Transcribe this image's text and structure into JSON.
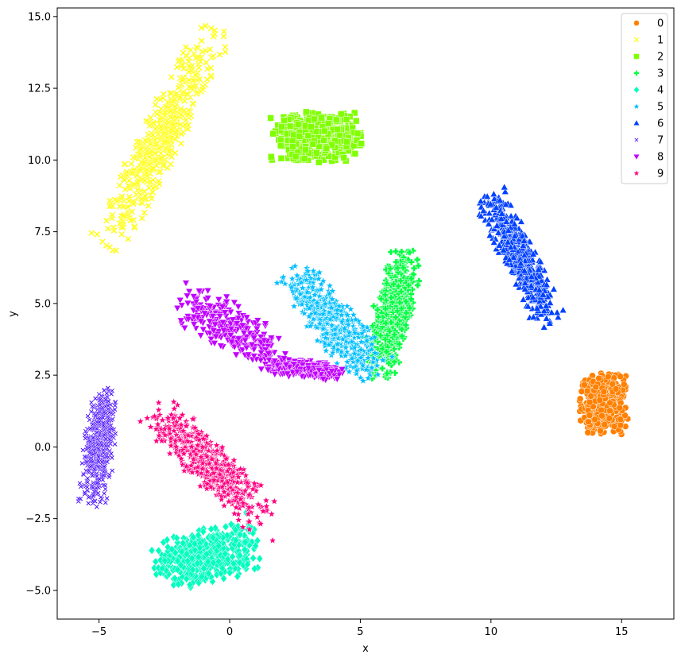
{
  "chart_data": {
    "type": "scatter",
    "title": "",
    "xlabel": "x",
    "ylabel": "y",
    "xlim": [
      -6.6,
      17.0
    ],
    "ylim": [
      -6.0,
      15.3
    ],
    "xticks": [
      -5,
      0,
      5,
      10,
      15
    ],
    "yticks": [
      -5.0,
      -2.5,
      0.0,
      2.5,
      5.0,
      7.5,
      10.0,
      12.5,
      15.0
    ],
    "xtick_labels": [
      "−5",
      "0",
      "5",
      "10",
      "15"
    ],
    "ytick_labels": [
      "−5.0",
      "−2.5",
      "0.0",
      "2.5",
      "5.0",
      "7.5",
      "10.0",
      "12.5",
      "15.0"
    ],
    "grid": false,
    "legend_position": "top-right",
    "series": [
      {
        "name": "0",
        "color": "#ff8000",
        "marker": "circle",
        "clusters": [
          {
            "center": [
              14.3,
              1.5
            ],
            "spread": [
              0.85,
              1.0
            ],
            "angle": 0
          }
        ]
      },
      {
        "name": "1",
        "color": "#ffff00",
        "marker": "x",
        "clusters": [
          {
            "center": [
              -2.6,
              10.8
            ],
            "spread": [
              4.0,
              0.75
            ],
            "angle": 62
          }
        ]
      },
      {
        "name": "2",
        "color": "#80ff00",
        "marker": "square",
        "clusters": [
          {
            "center": [
              3.3,
              10.8
            ],
            "spread": [
              1.6,
              0.8
            ],
            "angle": 0
          }
        ]
      },
      {
        "name": "3",
        "color": "#00ff40",
        "marker": "plus",
        "clusters": [
          {
            "center": [
              6.2,
              4.6
            ],
            "spread": [
              2.2,
              0.7
            ],
            "angle": 75
          }
        ]
      },
      {
        "name": "4",
        "color": "#00ffbf",
        "marker": "diamond",
        "clusters": [
          {
            "center": [
              -0.9,
              -3.8
            ],
            "spread": [
              1.9,
              0.9
            ],
            "angle": 12
          }
        ]
      },
      {
        "name": "5",
        "color": "#00bfff",
        "marker": "star",
        "clusters": [
          {
            "center": [
              4.0,
              4.3
            ],
            "spread": [
              2.3,
              0.8
            ],
            "angle": -48
          }
        ]
      },
      {
        "name": "6",
        "color": "#0040ff",
        "marker": "triangle-up",
        "clusters": [
          {
            "center": [
              11.1,
              6.6
            ],
            "spread": [
              2.4,
              0.6
            ],
            "angle": -62
          }
        ]
      },
      {
        "name": "7",
        "color": "#4000ff",
        "marker": "small-x",
        "clusters": [
          {
            "center": [
              -5.0,
              0.0
            ],
            "spread": [
              1.9,
              0.55
            ],
            "angle": 84
          }
        ]
      },
      {
        "name": "8",
        "color": "#c000ff",
        "marker": "triangle-down",
        "clusters": [
          {
            "center": [
              0.0,
              4.2
            ],
            "spread": [
              2.2,
              0.8
            ],
            "angle": -28
          },
          {
            "center": [
              3.0,
              2.7
            ],
            "spread": [
              1.5,
              0.3
            ],
            "angle": -5
          }
        ]
      },
      {
        "name": "9",
        "color": "#ff0080",
        "marker": "star",
        "clusters": [
          {
            "center": [
              -0.8,
              -0.6
            ],
            "spread": [
              2.8,
              0.75
            ],
            "angle": -42
          }
        ]
      }
    ]
  }
}
